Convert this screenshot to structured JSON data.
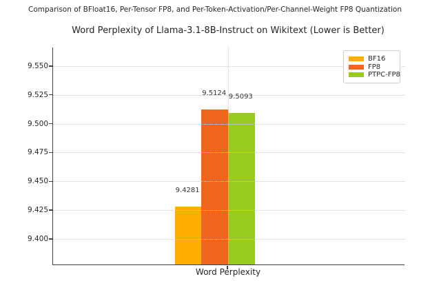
{
  "chart_data": {
    "type": "bar",
    "suptitle": "Comparison of BFloat16, Per-Tensor FP8, and Per-Token-Activation/Per-Channel-Weight FP8 Quantization",
    "title": "Word Perplexity of Llama-3.1-8B-Instruct on Wikitext (Lower is Better)",
    "categories": [
      "Word Perplexity"
    ],
    "series": [
      {
        "name": "BF16",
        "values": [
          9.4281
        ],
        "label": "9.4281",
        "color": "#ffad00"
      },
      {
        "name": "FP8",
        "values": [
          9.5124
        ],
        "label": "9.5124",
        "color": "#f1661f"
      },
      {
        "name": "PTPC-FP8",
        "values": [
          9.5093
        ],
        "label": "9.5093",
        "color": "#99ca1e"
      }
    ],
    "xlabel": "Word Perplexity",
    "ylabel": "",
    "ylim": [
      9.378,
      9.566
    ],
    "yticks": [
      9.4,
      9.425,
      9.45,
      9.475,
      9.5,
      9.525,
      9.55
    ],
    "ytick_labels": [
      "9.400",
      "9.425",
      "9.450",
      "9.475",
      "9.500",
      "9.525",
      "9.550"
    ],
    "grid": true,
    "grid_style": "dotted",
    "grid_above_bars": true,
    "legend_position": "upper right",
    "colors": {
      "spine": "#3f3f3f",
      "grid": "#cdcdcd",
      "text": "#262626",
      "value_label": "#333333"
    }
  }
}
